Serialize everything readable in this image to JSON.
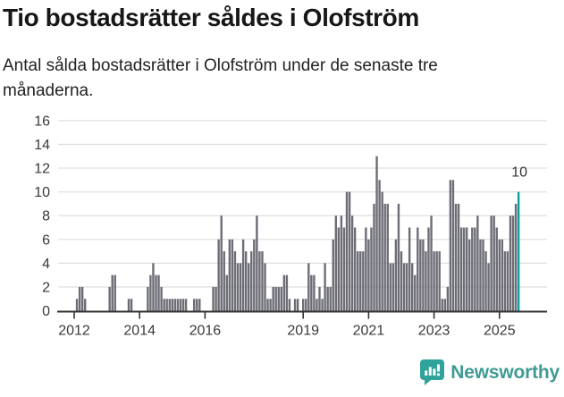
{
  "header": {
    "title": "Tio bostadsrätter såldes i Olofström",
    "subtitle": "Antal sålda bostadsrätter i Olofström under de senaste tre månaderna."
  },
  "chart_data": {
    "type": "bar",
    "title": "Tio bostadsrätter såldes i Olofström",
    "subtitle": "Antal sålda bostadsrätter i Olofström under de senaste tre månaderna.",
    "x_start": "2012-01",
    "x_end": "2025-08",
    "x_frequency": "monthly",
    "values": [
      0,
      1,
      2,
      2,
      1,
      0,
      0,
      0,
      0,
      0,
      0,
      0,
      0,
      2,
      3,
      3,
      0,
      0,
      0,
      0,
      1,
      1,
      0,
      0,
      0,
      0,
      0,
      2,
      3,
      4,
      3,
      3,
      2,
      1,
      1,
      1,
      1,
      1,
      1,
      1,
      1,
      1,
      0,
      0,
      1,
      1,
      1,
      0,
      0,
      0,
      0,
      2,
      2,
      6,
      8,
      5,
      3,
      6,
      6,
      5,
      4,
      4,
      6,
      5,
      4,
      5,
      6,
      8,
      5,
      5,
      4,
      1,
      1,
      2,
      2,
      2,
      2,
      3,
      3,
      1,
      0,
      1,
      1,
      0,
      1,
      1,
      4,
      3,
      3,
      1,
      2,
      1,
      4,
      2,
      2,
      6,
      8,
      7,
      8,
      7,
      10,
      10,
      8,
      7,
      5,
      5,
      5,
      7,
      6,
      7,
      9,
      13,
      11,
      10,
      9,
      9,
      4,
      4,
      6,
      9,
      5,
      4,
      4,
      7,
      4,
      3,
      7,
      6,
      6,
      5,
      7,
      8,
      5,
      5,
      5,
      1,
      1,
      2,
      11,
      11,
      9,
      9,
      7,
      7,
      7,
      6,
      7,
      7,
      8,
      6,
      6,
      5,
      4,
      8,
      8,
      7,
      6,
      6,
      5,
      5,
      8,
      8,
      9,
      10
    ],
    "highlight": {
      "index": 163,
      "value": 10,
      "label": "10",
      "month": "2025-08"
    },
    "ylim": [
      0,
      16
    ],
    "yticks": [
      0,
      2,
      4,
      6,
      8,
      10,
      12,
      14,
      16
    ],
    "xtick_years": [
      2012,
      2014,
      2016,
      2019,
      2021,
      2023,
      2025
    ],
    "grid": true,
    "legend": false,
    "colors": {
      "bar": "#6d6d76",
      "highlight": "#0d9e9e",
      "grid": "#e0e0e0",
      "axis": "#333333",
      "tick_text": "#3a3a3a",
      "annotation_text": "#333333"
    }
  },
  "footer": {
    "brand": "Newsworthy",
    "brand_color": "#3f9b94",
    "icon_color": "#2fa29a"
  }
}
